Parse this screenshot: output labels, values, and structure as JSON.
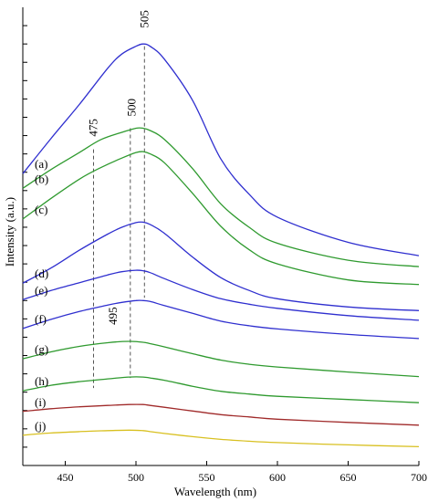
{
  "chart_data": {
    "type": "line",
    "xlabel": "Wavelength (nm)",
    "ylabel": "Intensity (a.u.)",
    "xlim": [
      420,
      700
    ],
    "ylim": [
      0,
      1
    ],
    "x_ticks": [
      450,
      500,
      550,
      600,
      650,
      700
    ],
    "y_minor_tick_count": 24,
    "series": [
      {
        "name": "(a)",
        "color": "#2f2fcf",
        "x": [
          420,
          440,
          460,
          480,
          490,
          500,
          505,
          510,
          520,
          540,
          560,
          580,
          600,
          650,
          700
        ],
        "y": [
          0.637,
          0.714,
          0.788,
          0.867,
          0.898,
          0.915,
          0.92,
          0.915,
          0.887,
          0.797,
          0.669,
          0.592,
          0.542,
          0.487,
          0.458
        ]
      },
      {
        "name": "(b)",
        "color": "#2f9a2f",
        "x": [
          420,
          440,
          460,
          475,
          490,
          500,
          505,
          510,
          520,
          540,
          560,
          580,
          600,
          650,
          700
        ],
        "y": [
          0.605,
          0.646,
          0.683,
          0.711,
          0.727,
          0.736,
          0.736,
          0.731,
          0.712,
          0.648,
          0.571,
          0.52,
          0.485,
          0.448,
          0.434
        ]
      },
      {
        "name": "(c)",
        "color": "#2f9a2f",
        "x": [
          420,
          440,
          460,
          475,
          490,
          500,
          505,
          510,
          520,
          540,
          560,
          580,
          600,
          650,
          700
        ],
        "y": [
          0.538,
          0.583,
          0.625,
          0.65,
          0.671,
          0.683,
          0.685,
          0.68,
          0.661,
          0.594,
          0.522,
          0.471,
          0.44,
          0.405,
          0.395
        ]
      },
      {
        "name": "(d)",
        "color": "#2f2fcf",
        "x": [
          420,
          440,
          460,
          480,
          490,
          500,
          505,
          510,
          520,
          540,
          560,
          580,
          600,
          650,
          700
        ],
        "y": [
          0.398,
          0.431,
          0.47,
          0.505,
          0.52,
          0.53,
          0.531,
          0.526,
          0.507,
          0.455,
          0.41,
          0.382,
          0.364,
          0.346,
          0.338
        ]
      },
      {
        "name": "(e)",
        "color": "#2f2fcf",
        "x": [
          420,
          440,
          460,
          480,
          490,
          500,
          505,
          510,
          520,
          540,
          560,
          580,
          600,
          650,
          700
        ],
        "y": [
          0.362,
          0.382,
          0.399,
          0.416,
          0.423,
          0.426,
          0.425,
          0.421,
          0.408,
          0.384,
          0.364,
          0.352,
          0.343,
          0.327,
          0.317
        ]
      },
      {
        "name": "(f)",
        "color": "#2f2fcf",
        "x": [
          420,
          440,
          460,
          480,
          490,
          500,
          505,
          510,
          520,
          540,
          560,
          580,
          600,
          650,
          700
        ],
        "y": [
          0.299,
          0.319,
          0.336,
          0.35,
          0.356,
          0.36,
          0.36,
          0.358,
          0.349,
          0.332,
          0.315,
          0.305,
          0.298,
          0.286,
          0.277
        ]
      },
      {
        "name": "(g)",
        "color": "#2f9a2f",
        "x": [
          420,
          440,
          460,
          480,
          495,
          505,
          510,
          520,
          540,
          560,
          580,
          600,
          650,
          700
        ],
        "y": [
          0.233,
          0.248,
          0.26,
          0.268,
          0.271,
          0.269,
          0.266,
          0.259,
          0.244,
          0.23,
          0.221,
          0.215,
          0.204,
          0.194
        ]
      },
      {
        "name": "(h)",
        "color": "#2f9a2f",
        "x": [
          420,
          440,
          460,
          480,
          495,
          505,
          510,
          520,
          540,
          560,
          580,
          600,
          650,
          700
        ],
        "y": [
          0.163,
          0.175,
          0.183,
          0.189,
          0.193,
          0.193,
          0.191,
          0.186,
          0.173,
          0.162,
          0.156,
          0.151,
          0.144,
          0.137
        ]
      },
      {
        "name": "(i)",
        "color": "#a02a2a",
        "x": [
          420,
          440,
          460,
          480,
          495,
          505,
          510,
          520,
          540,
          560,
          580,
          600,
          650,
          700
        ],
        "y": [
          0.118,
          0.124,
          0.128,
          0.131,
          0.133,
          0.133,
          0.131,
          0.127,
          0.119,
          0.111,
          0.106,
          0.101,
          0.094,
          0.088
        ]
      },
      {
        "name": "(j)",
        "color": "#d8c020",
        "x": [
          420,
          440,
          460,
          480,
          495,
          505,
          510,
          520,
          540,
          560,
          580,
          600,
          650,
          700
        ],
        "y": [
          0.066,
          0.071,
          0.074,
          0.076,
          0.077,
          0.076,
          0.074,
          0.07,
          0.063,
          0.057,
          0.053,
          0.05,
          0.045,
          0.041
        ]
      }
    ],
    "annotations": [
      {
        "text": "505",
        "x": 506,
        "y": 0.955,
        "line_x": 506,
        "line_top": 0.915,
        "line_bottom": 0.366
      },
      {
        "text": "500",
        "x": 497,
        "y": 0.762,
        "line_x": 496,
        "line_top": 0.736,
        "line_bottom": 0.191
      },
      {
        "text": "475",
        "x": 470,
        "y": 0.718,
        "line_x": 470,
        "line_top": 0.69,
        "line_bottom": 0.169
      },
      {
        "text": "495",
        "x": 484,
        "y": 0.307
      }
    ]
  }
}
